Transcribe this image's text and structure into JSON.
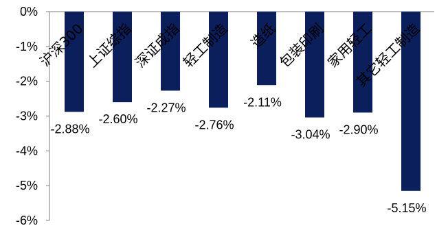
{
  "chart_data": {
    "type": "bar",
    "title": "",
    "xlabel": "",
    "ylabel": "",
    "categories": [
      "沪深300",
      "上证综指",
      "深证成指",
      "轻工制造",
      "造纸",
      "包装印刷",
      "家用轻工",
      "其它轻工制造"
    ],
    "values": [
      -2.88,
      -2.6,
      -2.27,
      -2.76,
      -2.11,
      -3.04,
      -2.9,
      -5.15
    ],
    "data_labels": [
      "-2.88%",
      "-2.60%",
      "-2.27%",
      "-2.76%",
      "-2.11%",
      "-3.04%",
      "-2.90%",
      "-5.15%"
    ],
    "ylim": [
      -6,
      0
    ],
    "y_ticks": [
      0,
      -1,
      -2,
      -3,
      -4,
      -5,
      -6
    ],
    "y_tick_labels": [
      "0%",
      "-1%",
      "-2%",
      "-3%",
      "-4%",
      "-5%",
      "-6%"
    ],
    "grid": false,
    "legend": "none",
    "bar_color": "#0a1f5c"
  }
}
